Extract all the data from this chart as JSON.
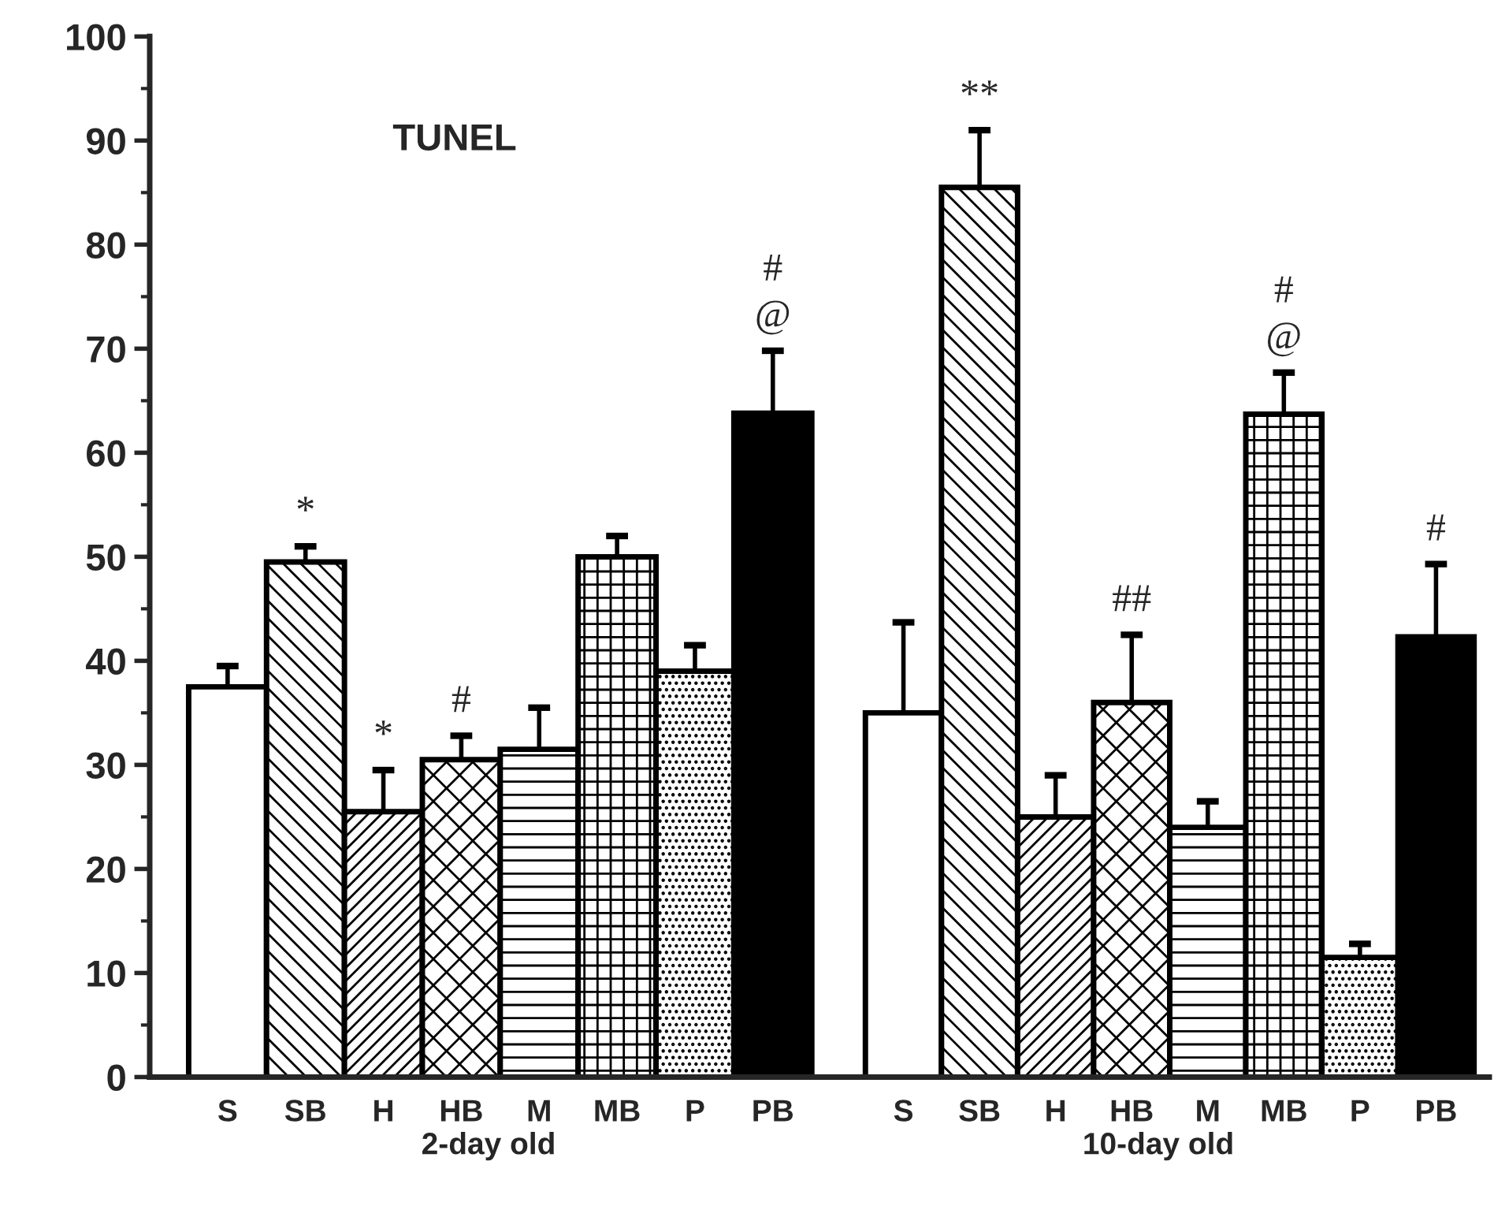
{
  "chart_data": [
    {
      "type": "bar",
      "title": "TUNEL",
      "xlabel": "2-day old",
      "categories": [
        "S",
        "SB",
        "H",
        "HB",
        "M",
        "MB",
        "P",
        "PB"
      ],
      "values": [
        37.5,
        49.5,
        25.5,
        30.5,
        31.5,
        50,
        39,
        63.8
      ],
      "errors": [
        2,
        1.5,
        4,
        2.3,
        4,
        2,
        2.5,
        6
      ],
      "colors": [
        "#ffffff",
        "#000000",
        "#000000",
        "#000000",
        "#000000",
        "#000000",
        "#ffffff",
        "#000000"
      ],
      "ylim": [
        0,
        100
      ],
      "yticks": [
        0,
        10,
        20,
        30,
        40,
        50,
        60,
        70,
        80,
        90,
        100
      ],
      "grid": false,
      "annotations": [
        {
          "text": "*",
          "x": "SB",
          "y": 49.5
        },
        {
          "text": "*",
          "x": "H",
          "y": 25.5
        },
        {
          "text": "#",
          "x": "HB",
          "y": 30.5
        },
        {
          "text": "#\n@",
          "x": "PB",
          "y": 63.8
        }
      ]
    },
    {
      "type": "bar",
      "xlabel": "10-day old",
      "categories": [
        "S",
        "SB",
        "H",
        "HB",
        "M",
        "MB",
        "P",
        "PB"
      ],
      "values": [
        35,
        85.5,
        25,
        36,
        24,
        63.7,
        11.5,
        42.3
      ],
      "errors": [
        8.7,
        5.5,
        4,
        6.5,
        2.5,
        4,
        1.3,
        7
      ],
      "colors": [
        "#ffffff",
        "#000000",
        "#000000",
        "#000000",
        "#000000",
        "#000000",
        "#ffffff",
        "#000000"
      ],
      "ylim": [
        0,
        100
      ],
      "yticks": [
        0,
        10,
        20,
        30,
        40,
        50,
        60,
        70,
        80,
        90,
        100
      ],
      "tick_labels": "x",
      "grid": false,
      "annotations": [
        {
          "text": "**",
          "x": "SB",
          "y": 85.5
        },
        {
          "text": "##",
          "x": "HB",
          "y": 36
        },
        {
          "text": "#\n@",
          "x": "MB",
          "y": 63.7
        },
        {
          "text": "#",
          "x": "PB",
          "y": 42.3
        }
      ]
    }
  ]
}
